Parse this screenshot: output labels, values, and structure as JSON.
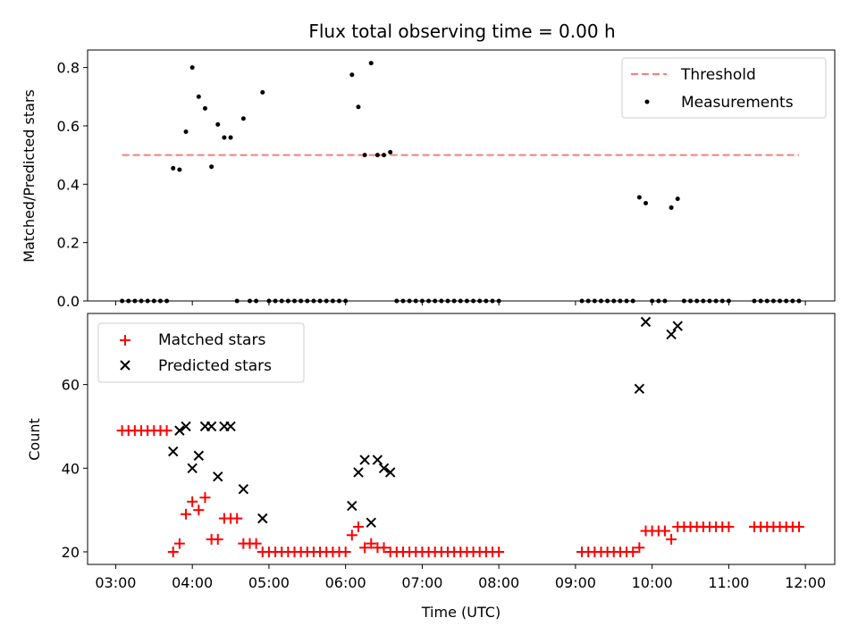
{
  "chart_data": [
    {
      "type": "scatter",
      "title": "Flux total observing time = 0.00 h",
      "xlabel": "",
      "ylabel": "Matched/Predicted stars",
      "xlim": [
        "02:38",
        "12:23"
      ],
      "ylim": [
        0,
        0.86
      ],
      "yticks": [
        "0.0",
        "0.2",
        "0.4",
        "0.6",
        "0.8"
      ],
      "legend_position": "top-right",
      "threshold": {
        "name": "Threshold",
        "value": 0.5,
        "x_start": "03:05",
        "x_end": "11:55",
        "color": "#f08080",
        "style": "dashed"
      },
      "series": [
        {
          "name": "Measurements",
          "color": "#000000",
          "marker": "dot",
          "points": [
            [
              "03:05",
              0
            ],
            [
              "03:10",
              0
            ],
            [
              "03:15",
              0
            ],
            [
              "03:20",
              0
            ],
            [
              "03:25",
              0
            ],
            [
              "03:30",
              0
            ],
            [
              "03:35",
              0
            ],
            [
              "03:40",
              0
            ],
            [
              "03:45",
              0.455
            ],
            [
              "03:50",
              0.45
            ],
            [
              "03:55",
              0.58
            ],
            [
              "04:00",
              0.8
            ],
            [
              "04:05",
              0.7
            ],
            [
              "04:10",
              0.66
            ],
            [
              "04:15",
              0.46
            ],
            [
              "04:20",
              0.605
            ],
            [
              "04:25",
              0.56
            ],
            [
              "04:30",
              0.56
            ],
            [
              "04:35",
              0
            ],
            [
              "04:40",
              0.625
            ],
            [
              "04:45",
              0
            ],
            [
              "04:50",
              0
            ],
            [
              "04:55",
              0.715
            ],
            [
              "05:00",
              0
            ],
            [
              "05:05",
              0
            ],
            [
              "05:10",
              0
            ],
            [
              "05:15",
              0
            ],
            [
              "05:20",
              0
            ],
            [
              "05:25",
              0
            ],
            [
              "05:30",
              0
            ],
            [
              "05:35",
              0
            ],
            [
              "05:40",
              0
            ],
            [
              "05:45",
              0
            ],
            [
              "05:50",
              0
            ],
            [
              "05:55",
              0
            ],
            [
              "06:00",
              0
            ],
            [
              "06:05",
              0.775
            ],
            [
              "06:10",
              0.665
            ],
            [
              "06:15",
              0.5
            ],
            [
              "06:20",
              0.815
            ],
            [
              "06:25",
              0.5
            ],
            [
              "06:30",
              0.5
            ],
            [
              "06:35",
              0.51
            ],
            [
              "06:40",
              0
            ],
            [
              "06:45",
              0
            ],
            [
              "06:50",
              0
            ],
            [
              "06:55",
              0
            ],
            [
              "07:00",
              0
            ],
            [
              "07:05",
              0
            ],
            [
              "07:10",
              0
            ],
            [
              "07:15",
              0
            ],
            [
              "07:20",
              0
            ],
            [
              "07:25",
              0
            ],
            [
              "07:30",
              0
            ],
            [
              "07:35",
              0
            ],
            [
              "07:40",
              0
            ],
            [
              "07:45",
              0
            ],
            [
              "07:50",
              0
            ],
            [
              "07:55",
              0
            ],
            [
              "08:00",
              0
            ],
            [
              "09:05",
              0
            ],
            [
              "09:10",
              0
            ],
            [
              "09:15",
              0
            ],
            [
              "09:20",
              0
            ],
            [
              "09:25",
              0
            ],
            [
              "09:30",
              0
            ],
            [
              "09:35",
              0
            ],
            [
              "09:40",
              0
            ],
            [
              "09:45",
              0
            ],
            [
              "09:50",
              0.355
            ],
            [
              "09:55",
              0.335
            ],
            [
              "10:00",
              0
            ],
            [
              "10:05",
              0
            ],
            [
              "10:10",
              0
            ],
            [
              "10:15",
              0.32
            ],
            [
              "10:20",
              0.35
            ],
            [
              "10:25",
              0
            ],
            [
              "10:30",
              0
            ],
            [
              "10:35",
              0
            ],
            [
              "10:40",
              0
            ],
            [
              "10:45",
              0
            ],
            [
              "10:50",
              0
            ],
            [
              "10:55",
              0
            ],
            [
              "11:00",
              0
            ],
            [
              "11:20",
              0
            ],
            [
              "11:25",
              0
            ],
            [
              "11:30",
              0
            ],
            [
              "11:35",
              0
            ],
            [
              "11:40",
              0
            ],
            [
              "11:45",
              0
            ],
            [
              "11:50",
              0
            ],
            [
              "11:55",
              0
            ]
          ]
        }
      ]
    },
    {
      "type": "scatter",
      "title": "",
      "xlabel": "Time (UTC)",
      "ylabel": "Count",
      "xlim": [
        "02:38",
        "12:23"
      ],
      "ylim": [
        17,
        77
      ],
      "yticks": [
        "20",
        "40",
        "60"
      ],
      "xticks": [
        "03:00",
        "04:00",
        "05:00",
        "06:00",
        "07:00",
        "08:00",
        "09:00",
        "10:00",
        "11:00",
        "12:00"
      ],
      "legend_position": "top-left",
      "series": [
        {
          "name": "Matched stars",
          "color": "#ff0000",
          "marker": "plus",
          "points": [
            [
              "03:05",
              49
            ],
            [
              "03:10",
              49
            ],
            [
              "03:15",
              49
            ],
            [
              "03:20",
              49
            ],
            [
              "03:25",
              49
            ],
            [
              "03:30",
              49
            ],
            [
              "03:35",
              49
            ],
            [
              "03:40",
              49
            ],
            [
              "03:45",
              20
            ],
            [
              "03:50",
              22
            ],
            [
              "03:55",
              29
            ],
            [
              "04:00",
              32
            ],
            [
              "04:05",
              30
            ],
            [
              "04:10",
              33
            ],
            [
              "04:15",
              23
            ],
            [
              "04:20",
              23
            ],
            [
              "04:25",
              28
            ],
            [
              "04:30",
              28
            ],
            [
              "04:35",
              28
            ],
            [
              "04:40",
              22
            ],
            [
              "04:45",
              22
            ],
            [
              "04:50",
              22
            ],
            [
              "04:55",
              20
            ],
            [
              "05:00",
              20
            ],
            [
              "05:05",
              20
            ],
            [
              "05:10",
              20
            ],
            [
              "05:15",
              20
            ],
            [
              "05:20",
              20
            ],
            [
              "05:25",
              20
            ],
            [
              "05:30",
              20
            ],
            [
              "05:35",
              20
            ],
            [
              "05:40",
              20
            ],
            [
              "05:45",
              20
            ],
            [
              "05:50",
              20
            ],
            [
              "05:55",
              20
            ],
            [
              "06:00",
              20
            ],
            [
              "06:05",
              24
            ],
            [
              "06:10",
              26
            ],
            [
              "06:15",
              21
            ],
            [
              "06:20",
              22
            ],
            [
              "06:25",
              21
            ],
            [
              "06:30",
              21
            ],
            [
              "06:35",
              20
            ],
            [
              "06:40",
              20
            ],
            [
              "06:45",
              20
            ],
            [
              "06:50",
              20
            ],
            [
              "06:55",
              20
            ],
            [
              "07:00",
              20
            ],
            [
              "07:05",
              20
            ],
            [
              "07:10",
              20
            ],
            [
              "07:15",
              20
            ],
            [
              "07:20",
              20
            ],
            [
              "07:25",
              20
            ],
            [
              "07:30",
              20
            ],
            [
              "07:35",
              20
            ],
            [
              "07:40",
              20
            ],
            [
              "07:45",
              20
            ],
            [
              "07:50",
              20
            ],
            [
              "07:55",
              20
            ],
            [
              "08:00",
              20
            ],
            [
              "09:05",
              20
            ],
            [
              "09:10",
              20
            ],
            [
              "09:15",
              20
            ],
            [
              "09:20",
              20
            ],
            [
              "09:25",
              20
            ],
            [
              "09:30",
              20
            ],
            [
              "09:35",
              20
            ],
            [
              "09:40",
              20
            ],
            [
              "09:45",
              20
            ],
            [
              "09:50",
              21
            ],
            [
              "09:55",
              25
            ],
            [
              "10:00",
              25
            ],
            [
              "10:05",
              25
            ],
            [
              "10:10",
              25
            ],
            [
              "10:15",
              23
            ],
            [
              "10:20",
              26
            ],
            [
              "10:25",
              26
            ],
            [
              "10:30",
              26
            ],
            [
              "10:35",
              26
            ],
            [
              "10:40",
              26
            ],
            [
              "10:45",
              26
            ],
            [
              "10:50",
              26
            ],
            [
              "10:55",
              26
            ],
            [
              "11:00",
              26
            ],
            [
              "11:20",
              26
            ],
            [
              "11:25",
              26
            ],
            [
              "11:30",
              26
            ],
            [
              "11:35",
              26
            ],
            [
              "11:40",
              26
            ],
            [
              "11:45",
              26
            ],
            [
              "11:50",
              26
            ],
            [
              "11:55",
              26
            ]
          ]
        },
        {
          "name": "Predicted stars",
          "color": "#000000",
          "marker": "x",
          "points": [
            [
              "03:45",
              44
            ],
            [
              "03:50",
              49
            ],
            [
              "03:55",
              50
            ],
            [
              "04:00",
              40
            ],
            [
              "04:05",
              43
            ],
            [
              "04:10",
              50
            ],
            [
              "04:15",
              50
            ],
            [
              "04:20",
              38
            ],
            [
              "04:25",
              50
            ],
            [
              "04:30",
              50
            ],
            [
              "04:40",
              35
            ],
            [
              "04:55",
              28
            ],
            [
              "06:05",
              31
            ],
            [
              "06:10",
              39
            ],
            [
              "06:15",
              42
            ],
            [
              "06:20",
              27
            ],
            [
              "06:25",
              42
            ],
            [
              "06:30",
              40
            ],
            [
              "06:35",
              39
            ],
            [
              "09:50",
              59
            ],
            [
              "09:55",
              75
            ],
            [
              "10:15",
              72
            ],
            [
              "10:20",
              74
            ]
          ]
        }
      ]
    }
  ]
}
